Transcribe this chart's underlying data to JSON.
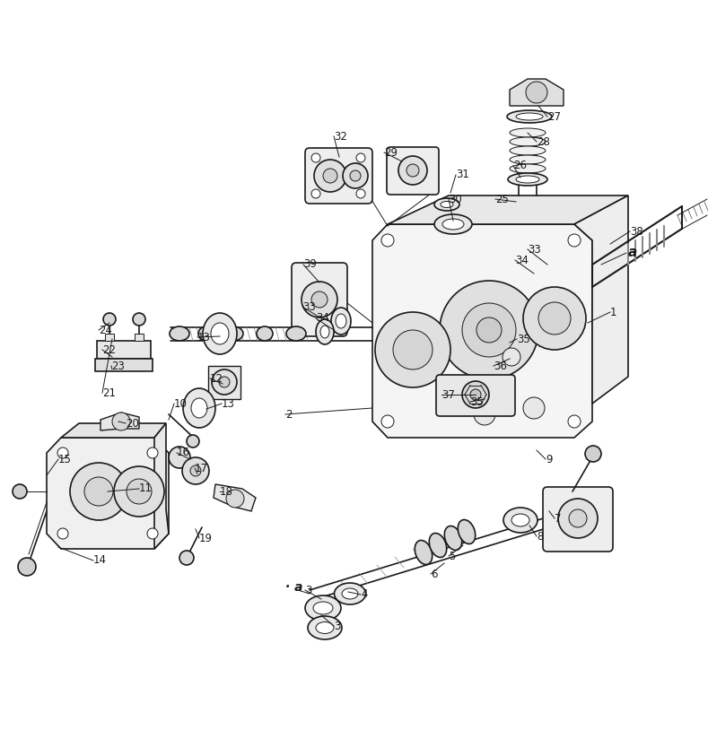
{
  "bg_color": "#ffffff",
  "lc": "#1a1a1a",
  "figsize": [
    7.89,
    8.14
  ],
  "dpi": 100,
  "lw": 1.0,
  "labels": [
    [
      "1",
      680,
      340
    ],
    [
      "2",
      318,
      455
    ],
    [
      "3",
      340,
      650
    ],
    [
      "3",
      370,
      690
    ],
    [
      "4",
      400,
      655
    ],
    [
      "5",
      498,
      612
    ],
    [
      "6",
      478,
      633
    ],
    [
      "7",
      618,
      572
    ],
    [
      "8",
      596,
      592
    ],
    [
      "9",
      606,
      505
    ],
    [
      "10",
      192,
      443
    ],
    [
      "11",
      152,
      540
    ],
    [
      "12",
      232,
      416
    ],
    [
      "13",
      218,
      370
    ],
    [
      "13",
      245,
      443
    ],
    [
      "14",
      102,
      618
    ],
    [
      "15",
      62,
      505
    ],
    [
      "16",
      195,
      498
    ],
    [
      "17",
      215,
      516
    ],
    [
      "18",
      242,
      540
    ],
    [
      "19",
      220,
      594
    ],
    [
      "20",
      138,
      465
    ],
    [
      "21",
      112,
      432
    ],
    [
      "22",
      112,
      383
    ],
    [
      "23",
      122,
      402
    ],
    [
      "24",
      108,
      362
    ],
    [
      "25",
      548,
      215
    ],
    [
      "26",
      570,
      178
    ],
    [
      "27",
      608,
      122
    ],
    [
      "28",
      596,
      150
    ],
    [
      "29",
      425,
      162
    ],
    [
      "30",
      498,
      215
    ],
    [
      "31",
      505,
      188
    ],
    [
      "32",
      370,
      145
    ],
    [
      "33",
      586,
      271
    ],
    [
      "33",
      335,
      336
    ],
    [
      "34",
      572,
      283
    ],
    [
      "34",
      350,
      348
    ],
    [
      "35",
      574,
      370
    ],
    [
      "35",
      522,
      442
    ],
    [
      "36",
      548,
      402
    ],
    [
      "37",
      490,
      435
    ],
    [
      "38",
      700,
      250
    ],
    [
      "39",
      336,
      288
    ]
  ],
  "leader_lines": [
    [
      686,
      348,
      650,
      380
    ],
    [
      348,
      463,
      375,
      455
    ],
    [
      608,
      510,
      580,
      498
    ],
    [
      554,
      222,
      558,
      248
    ],
    [
      576,
      185,
      565,
      210
    ],
    [
      614,
      128,
      600,
      155
    ],
    [
      602,
      156,
      588,
      175
    ],
    [
      431,
      168,
      438,
      192
    ],
    [
      504,
      222,
      505,
      248
    ],
    [
      511,
      195,
      508,
      220
    ],
    [
      376,
      150,
      380,
      175
    ],
    [
      592,
      278,
      600,
      295
    ],
    [
      578,
      290,
      585,
      305
    ],
    [
      706,
      256,
      680,
      272
    ],
    [
      554,
      410,
      558,
      398
    ],
    [
      342,
      295,
      345,
      315
    ],
    [
      108,
      625,
      78,
      605
    ],
    [
      68,
      510,
      95,
      505
    ],
    [
      200,
      505,
      215,
      498
    ],
    [
      145,
      472,
      148,
      482
    ],
    [
      118,
      438,
      128,
      428
    ],
    [
      118,
      388,
      128,
      402
    ],
    [
      115,
      368,
      128,
      372
    ],
    [
      346,
      658,
      362,
      640
    ],
    [
      624,
      578,
      608,
      568
    ],
    [
      602,
      598,
      595,
      585
    ],
    [
      504,
      618,
      512,
      605
    ],
    [
      484,
      638,
      492,
      625
    ]
  ]
}
